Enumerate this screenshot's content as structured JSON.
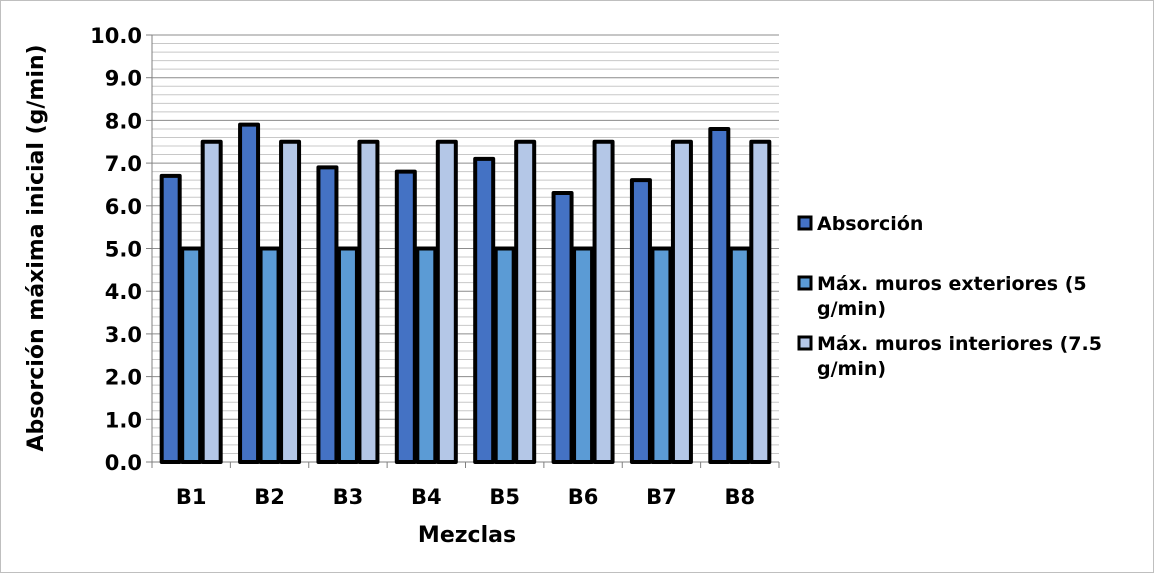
{
  "chart_data": {
    "type": "bar",
    "title": "",
    "xlabel": "Mezclas",
    "ylabel": "Absorción máxima inicial (g/min)",
    "categories": [
      "B1",
      "B2",
      "B3",
      "B4",
      "B5",
      "B6",
      "B7",
      "B8"
    ],
    "ylim": [
      0,
      10
    ],
    "yticks": [
      "0.0",
      "1.0",
      "2.0",
      "3.0",
      "4.0",
      "5.0",
      "6.0",
      "7.0",
      "8.0",
      "9.0",
      "10.0"
    ],
    "minor_grid_step": 0.2,
    "grid": true,
    "legend_position": "right",
    "series": [
      {
        "name": "Absorción",
        "color": "#4472c4",
        "values": [
          6.7,
          7.9,
          6.9,
          6.8,
          7.1,
          6.3,
          6.6,
          7.8
        ]
      },
      {
        "name": "Máx. muros exteriores (5 g/min)",
        "color": "#5b9bd5",
        "values": [
          5,
          5,
          5,
          5,
          5,
          5,
          5,
          5
        ]
      },
      {
        "name": "Máx. muros interiores (7.5 g/min)",
        "color": "#b4c7e7",
        "values": [
          7.5,
          7.5,
          7.5,
          7.5,
          7.5,
          7.5,
          7.5,
          7.5
        ]
      }
    ],
    "legend": [
      {
        "line1": "Absorción",
        "line2": ""
      },
      {
        "line1": "Máx. muros exteriores (5",
        "line2": "g/min)"
      },
      {
        "line1": "Máx. muros interiores (7.5",
        "line2": "g/min)"
      }
    ]
  }
}
